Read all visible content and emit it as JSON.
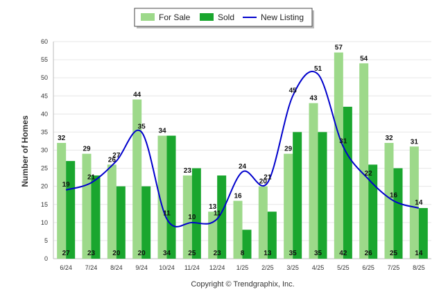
{
  "chart_data": {
    "type": "bar",
    "categories": [
      "6/24",
      "7/24",
      "8/24",
      "9/24",
      "10/24",
      "11/24",
      "12/24",
      "1/25",
      "2/25",
      "3/25",
      "4/25",
      "5/25",
      "6/25",
      "7/25",
      "8/25"
    ],
    "series": [
      {
        "name": "For Sale",
        "kind": "bar",
        "color": "#9dd98a",
        "values": [
          32,
          29,
          26,
          44,
          34,
          23,
          13,
          16,
          20,
          29,
          43,
          57,
          54,
          32,
          31
        ]
      },
      {
        "name": "Sold",
        "kind": "bar",
        "color": "#1aa62e",
        "values": [
          27,
          23,
          20,
          20,
          34,
          25,
          23,
          8,
          13,
          35,
          35,
          42,
          26,
          25,
          14
        ]
      },
      {
        "name": "New Listing",
        "kind": "line",
        "color": "#0000cc",
        "values": [
          19,
          21,
          27,
          35,
          11,
          10,
          11,
          24,
          21,
          45,
          51,
          31,
          22,
          16,
          14
        ]
      }
    ],
    "ylabel": "Number of Homes",
    "xlabel": "",
    "ylim": [
      0,
      60
    ],
    "yticks": [
      0,
      5,
      10,
      15,
      20,
      25,
      30,
      35,
      40,
      45,
      50,
      55,
      60
    ],
    "grid": true,
    "legend_position": "top-center",
    "credit": "Copyright © Trendgraphix, Inc."
  }
}
